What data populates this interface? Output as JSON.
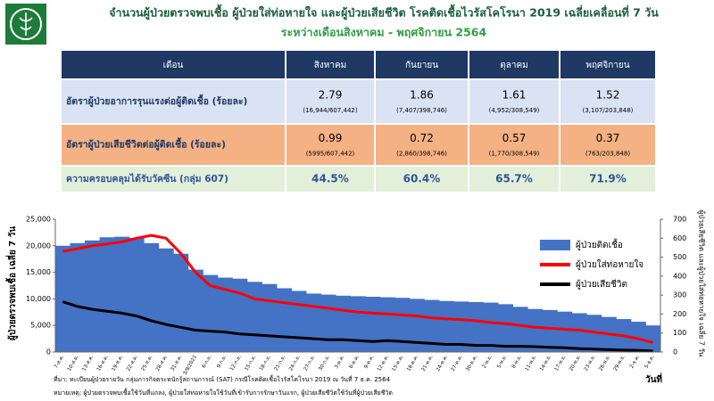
{
  "header": {
    "title": "จำนวนผู้ป่วยตรวจพบเชื้อ ผู้ป่วยใส่ท่อหายใจ และผู้ป่วยเสียชีวิต โรคติดเชื้อไวรัสโคโรนา 2019 เฉลี่ยเคลื่อนที่ 7 วัน",
    "subtitle": "ระหว่างเดือนสิงหาคม - พฤศจิกายน 2564"
  },
  "table": {
    "header": [
      "เดือน",
      "สิงหาคม",
      "กันยายน",
      "ตุลาคม",
      "พฤศจิกายน"
    ],
    "rows": [
      {
        "label": "อัตราผู้ป่วยอาการรุนแรงต่อผู้ติดเชื้อ (ร้อยละ)",
        "values": [
          "2.79",
          "1.86",
          "1.61",
          "1.52"
        ],
        "details": [
          "(16,944/607,442)",
          "(7,407/398,746)",
          "(4,952/308,549)",
          "(3,107/203,848)"
        ]
      },
      {
        "label": "อัตราผู้ป่วยเสียชีวิตต่อผู้ติดเชื้อ (ร้อยละ)",
        "values": [
          "0.99",
          "0.72",
          "0.57",
          "0.37"
        ],
        "details": [
          "(5995/607,442)",
          "(2,860/398,746)",
          "(1,770/308,549)",
          "(763/203,848)"
        ]
      },
      {
        "label": "ความครอบคลุมได้รับวัคซีน (กลุ่ม 607)",
        "values": [
          "44.5%",
          "60.4%",
          "65.7%",
          "71.9%"
        ]
      }
    ]
  },
  "chart_data": {
    "type": "combo",
    "categories": [
      "7-ส.ค.",
      "10-ส.ค.",
      "13-ส.ค.",
      "16-ส.ค.",
      "19-ส.ค.",
      "22-ส.ค.",
      "25-ส.ค.",
      "28-ส.ค.",
      "31-ส.ค.",
      "3/9/2021",
      "6-ก.ย.",
      "9-ก.ย.",
      "12-ก.ย.",
      "15-ก.ย.",
      "18-ก.ย.",
      "21-ก.ย.",
      "24-ก.ย.",
      "27-ก.ย.",
      "30-ก.ย.",
      "3-ต.ค.",
      "6-ต.ค.",
      "9-ต.ค.",
      "12-ต.ค.",
      "15-ต.ค.",
      "18-ต.ค.",
      "21-ต.ค.",
      "24-ต.ค.",
      "27-ต.ค.",
      "30-ต.ค.",
      "2-พ.ย.",
      "5-พ.ย.",
      "8-พ.ย.",
      "11-พ.ย.",
      "14-พ.ย.",
      "17-พ.ย.",
      "20-พ.ย.",
      "23-พ.ย.",
      "26-พ.ย.",
      "29-พ.ย.",
      "2-ธ.ค.",
      "5-ธ.ค."
    ],
    "series": [
      {
        "name": "ผู้ป่วยติดเชื้อ",
        "type": "bar",
        "axis": "y",
        "color": "#4472c4",
        "values": [
          20000,
          20500,
          21000,
          21600,
          21700,
          21500,
          20500,
          19500,
          18500,
          15500,
          14500,
          14000,
          13800,
          13200,
          12800,
          12000,
          11500,
          11000,
          10800,
          10600,
          10500,
          10400,
          10300,
          10200,
          10000,
          9800,
          9600,
          9500,
          9400,
          9300,
          9000,
          8500,
          8100,
          7900,
          7600,
          7300,
          7000,
          6600,
          6200,
          5700,
          5000
        ]
      },
      {
        "name": "ผู้ป่วยใส่ท่อหายใจ",
        "type": "line",
        "axis": "y2",
        "color": "#ff0000",
        "values": [
          530,
          545,
          560,
          570,
          580,
          600,
          615,
          600,
          520,
          420,
          350,
          330,
          310,
          280,
          270,
          260,
          250,
          240,
          230,
          220,
          210,
          205,
          200,
          195,
          190,
          180,
          175,
          170,
          165,
          155,
          150,
          140,
          130,
          125,
          120,
          115,
          105,
          95,
          85,
          70,
          50
        ]
      },
      {
        "name": "ผู้ป่วยเสียชีวิต",
        "type": "line",
        "axis": "y2",
        "color": "#000000",
        "values": [
          265,
          240,
          225,
          215,
          205,
          190,
          165,
          145,
          130,
          115,
          110,
          105,
          95,
          90,
          85,
          80,
          75,
          70,
          65,
          65,
          60,
          55,
          60,
          55,
          50,
          45,
          40,
          40,
          35,
          35,
          30,
          30,
          28,
          25,
          22,
          18,
          15,
          12,
          10,
          8,
          5
        ]
      }
    ],
    "ylim": [
      0,
      25000
    ],
    "yticks": [
      0,
      {
        "value": 5000,
        "label": "5,000"
      },
      {
        "value": 10000,
        "label": "10,000"
      },
      {
        "value": 15000,
        "label": "15,000"
      },
      {
        "value": 20000,
        "label": "20,000"
      },
      {
        "value": 25000,
        "label": "25,000"
      }
    ],
    "y2lim": [
      0,
      700
    ],
    "y2ticks": [
      0,
      100,
      200,
      300,
      400,
      500,
      600,
      700
    ],
    "ylabel": "ผู้ป่วยตรวจพบเชื้อ เฉลี่ย 7 วัน",
    "y2label": "ผู้ป่วยเสียชีวิต และผู้ป่วยใส่ท่อหายใจ เฉลี่ย 7 วัน",
    "xlabel": "วันที่",
    "legend": "right",
    "source": "ที่มา: ทะเบียนผู้ป่วยรายวัน กลุ่มภารกิจตระหนักรู้สถานการณ์ (SAT) กรณีโรคติดเชื้อไวรัสโคโรนา 2019 ณ วันที่ 7 ธ.ค. 2564",
    "note": "หมายเหตุ: ผู้ป่วยตรวจพบเชื้อใช้วันที่แถลง, ผู้ป่วยใส่ท่อหายใจใช้วันที่เข้ารับการรักษาวันแรก, ผู้ป่วยเสียชีวิตใช้วันที่ผู้ป่วยเสียชีวิต"
  }
}
